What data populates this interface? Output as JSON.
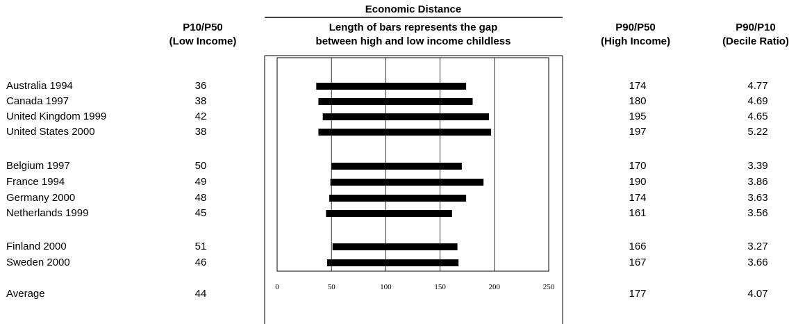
{
  "headers": {
    "p10": [
      "P10/P50",
      "(Low Income)"
    ],
    "chart_title": "Economic Distance",
    "chart_sub": [
      "Length of bars represents the gap",
      "between high and low income childless"
    ],
    "p90": [
      "P90/P50",
      "(High Income)"
    ],
    "ratio": [
      "P90/P10",
      "(Decile Ratio)"
    ]
  },
  "rows": [
    {
      "country": "Australia 1994",
      "p10": "36",
      "p90": "174",
      "ratio": "4.77"
    },
    {
      "country": "Canada 1997",
      "p10": "38",
      "p90": "180",
      "ratio": "4.69"
    },
    {
      "country": "United Kingdom 1999",
      "p10": "42",
      "p90": "195",
      "ratio": "4.65"
    },
    {
      "country": "United States 2000",
      "p10": "38",
      "p90": "197",
      "ratio": "5.22"
    },
    {
      "country": "Belgium 1997",
      "p10": "50",
      "p90": "170",
      "ratio": "3.39"
    },
    {
      "country": "France 1994",
      "p10": "49",
      "p90": "190",
      "ratio": "3.86"
    },
    {
      "country": "Germany 2000",
      "p10": "48",
      "p90": "174",
      "ratio": "3.63"
    },
    {
      "country": "Netherlands 1999",
      "p10": "45",
      "p90": "161",
      "ratio": "3.56"
    },
    {
      "country": "Finland 2000",
      "p10": "51",
      "p90": "166",
      "ratio": "3.27"
    },
    {
      "country": "Sweden 2000",
      "p10": "46",
      "p90": "167",
      "ratio": "3.66"
    },
    {
      "country": "Average",
      "p10": "44",
      "p90": "177",
      "ratio": "4.07"
    }
  ],
  "chart_data": {
    "type": "bar",
    "orientation": "horizontal-range",
    "title": "Economic Distance",
    "subtitle": "Length of bars represents the gap between high and low income childless",
    "categories": [
      "Australia 1994",
      "Canada 1997",
      "United Kingdom 1999",
      "United States 2000",
      "Belgium 1997",
      "France 1994",
      "Germany 2000",
      "Netherlands 1999",
      "Finland 2000",
      "Sweden 2000"
    ],
    "low": [
      36,
      38,
      42,
      38,
      50,
      49,
      48,
      45,
      51,
      46
    ],
    "high": [
      174,
      180,
      195,
      197,
      170,
      190,
      174,
      161,
      166,
      167
    ],
    "xlim": [
      0,
      250
    ],
    "xticks": [
      0,
      50,
      100,
      150,
      200,
      250
    ],
    "grid": true,
    "bar_color": "#000000"
  }
}
